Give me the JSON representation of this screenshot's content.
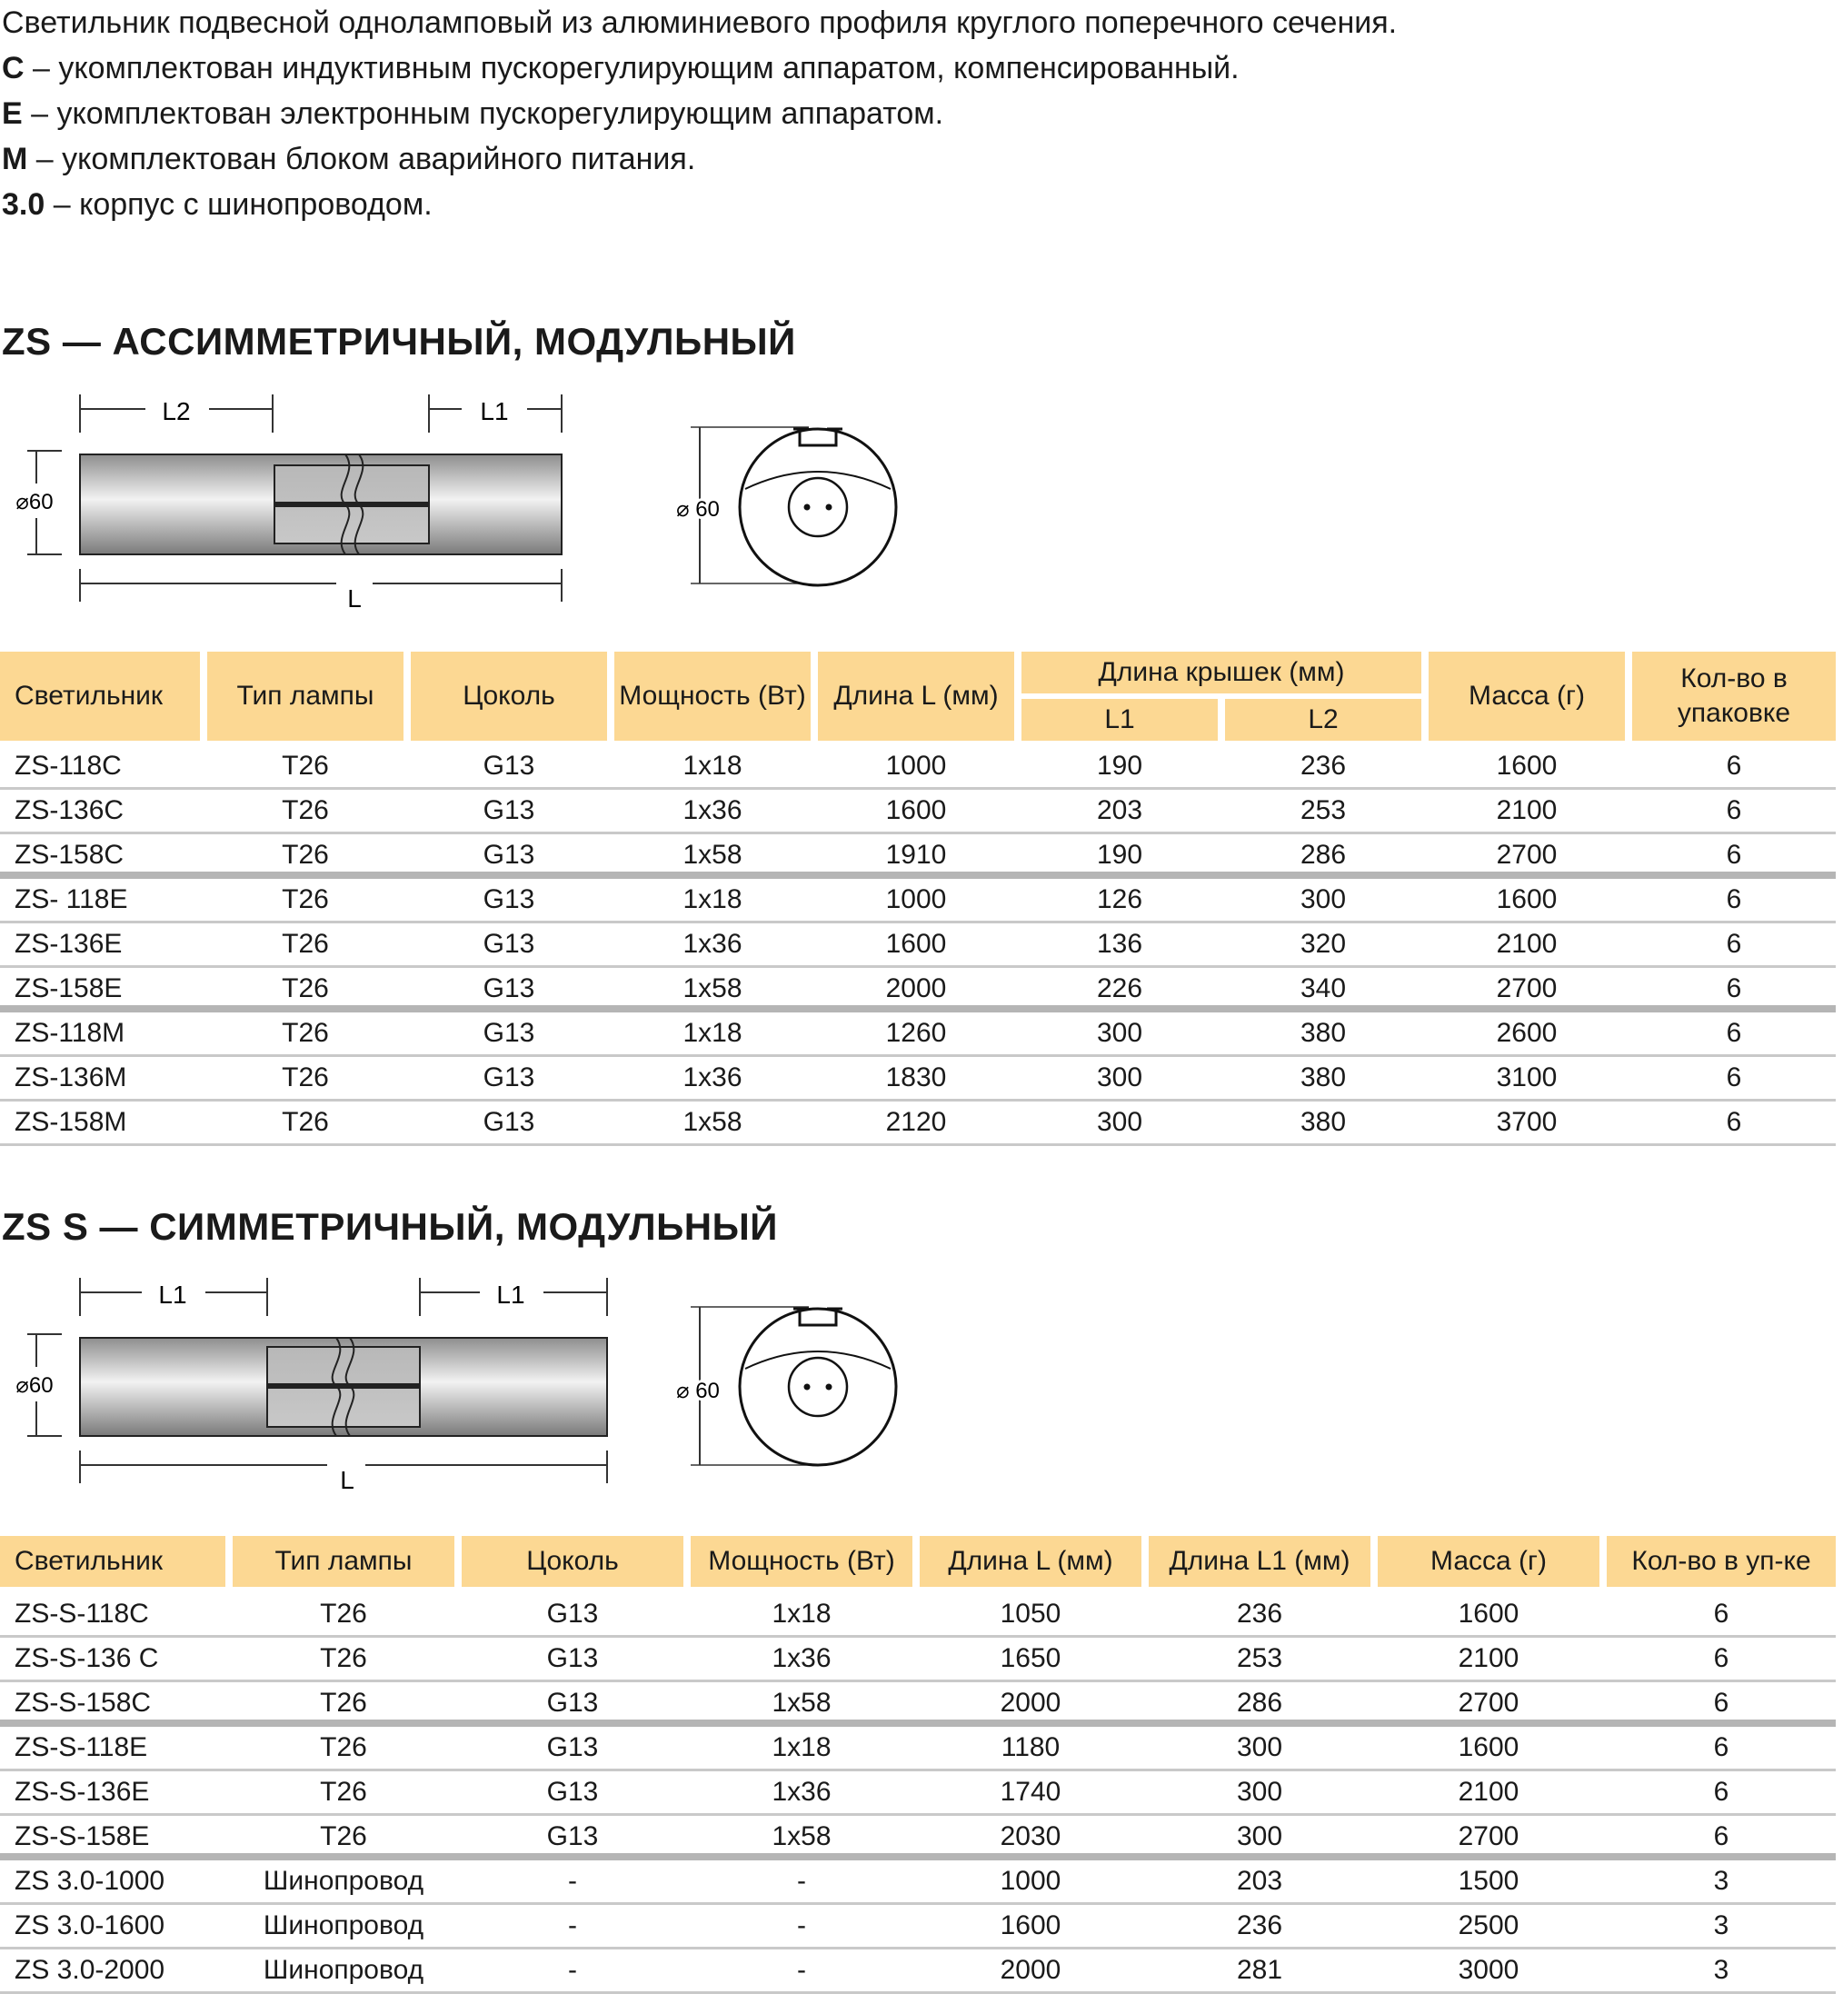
{
  "intro": {
    "line1": "Светильник подвесной одноламповый из алюминиевого профиля круглого  поперечного сечения.",
    "c_key": "C",
    "c_text": " – укомплектован индуктивным пускорегулирующим аппаратом, компенсированный.",
    "e_key": "E",
    "e_text": " – укомплектован электронным пускорегулирующим аппаратом.",
    "m_key": "M",
    "m_text": " – укомплектован блоком аварийного питания.",
    "k_key": "3.0",
    "k_text": " – корпус с  шинопроводом."
  },
  "section1": {
    "title": "ZS — АССИММЕТРИЧНЫЙ, МОДУЛЬНЫЙ",
    "dim_l2": "L2",
    "dim_l1": "L1",
    "dim_l": "L",
    "dim_d": "⌀60",
    "dim_d2": "⌀ 60",
    "headers": {
      "col1": "Светильник",
      "col2": "Тип лампы",
      "col3": "Цоколь",
      "col4": "Мощность (Вт)",
      "col5": "Длина L (мм)",
      "group": "Длина крышек  (мм)",
      "sub1": "L1",
      "sub2": "L2",
      "col8": "Масса (г)",
      "col9": "Кол-во в упаковке"
    },
    "rows": [
      [
        "ZS-118C",
        "T26",
        "G13",
        "1x18",
        "1000",
        "190",
        "236",
        "1600",
        "6"
      ],
      [
        "ZS-136C",
        "T26",
        "G13",
        "1x36",
        "1600",
        "203",
        "253",
        "2100",
        "6"
      ],
      [
        "ZS-158C",
        "T26",
        "G13",
        "1x58",
        "1910",
        "190",
        "286",
        "2700",
        "6"
      ],
      [
        "ZS- 118E",
        "T26",
        "G13",
        "1x18",
        "1000",
        "126",
        "300",
        "1600",
        "6"
      ],
      [
        "ZS-136E",
        "T26",
        "G13",
        "1x36",
        "1600",
        "136",
        "320",
        "2100",
        "6"
      ],
      [
        "ZS-158E",
        "T26",
        "G13",
        "1x58",
        "2000",
        "226",
        "340",
        "2700",
        "6"
      ],
      [
        "ZS-118M",
        "T26",
        "G13",
        "1x18",
        "1260",
        "300",
        "380",
        "2600",
        "6"
      ],
      [
        "ZS-136M",
        "T26",
        "G13",
        "1x36",
        "1830",
        "300",
        "380",
        "3100",
        "6"
      ],
      [
        "ZS-158M",
        "T26",
        "G13",
        "1x58",
        "2120",
        "300",
        "380",
        "3700",
        "6"
      ]
    ]
  },
  "section2": {
    "title": "ZS S — СИММЕТРИЧНЫЙ, МОДУЛЬНЫЙ",
    "dim_l1a": "L1",
    "dim_l1b": "L1",
    "dim_l": "L",
    "dim_d": "⌀60",
    "dim_d2": "⌀ 60",
    "headers": {
      "col1": "Светильник",
      "col2": "Тип лампы",
      "col3": "Цоколь",
      "col4": "Мощность (Вт)",
      "col5": "Длина L (мм)",
      "col6": "Длина L1 (мм)",
      "col7": "Масса (г)",
      "col8": "Кол-во в уп-ке"
    },
    "rows": [
      [
        "ZS-S-118C",
        "T26",
        "G13",
        "1x18",
        "1050",
        "236",
        "1600",
        "6"
      ],
      [
        "ZS-S-136 C",
        "T26",
        "G13",
        "1x36",
        "1650",
        "253",
        "2100",
        "6"
      ],
      [
        "ZS-S-158C",
        "T26",
        "G13",
        "1x58",
        "2000",
        "286",
        "2700",
        "6"
      ],
      [
        "ZS-S-118E",
        "T26",
        "G13",
        "1x18",
        "1180",
        "300",
        "1600",
        "6"
      ],
      [
        "ZS-S-136E",
        "T26",
        "G13",
        "1x36",
        "1740",
        "300",
        "2100",
        "6"
      ],
      [
        "ZS-S-158E",
        "T26",
        "G13",
        "1x58",
        "2030",
        "300",
        "2700",
        "6"
      ],
      [
        "ZS 3.0-1000",
        "Шинопровод",
        "-",
        "-",
        "1000",
        "203",
        "1500",
        "3"
      ],
      [
        "ZS 3.0-1600",
        "Шинопровод",
        "-",
        "-",
        "1600",
        "236",
        "2500",
        "3"
      ],
      [
        "ZS 3.0-2000",
        "Шинопровод",
        "-",
        "-",
        "2000",
        "281",
        "3000",
        "3"
      ]
    ]
  }
}
